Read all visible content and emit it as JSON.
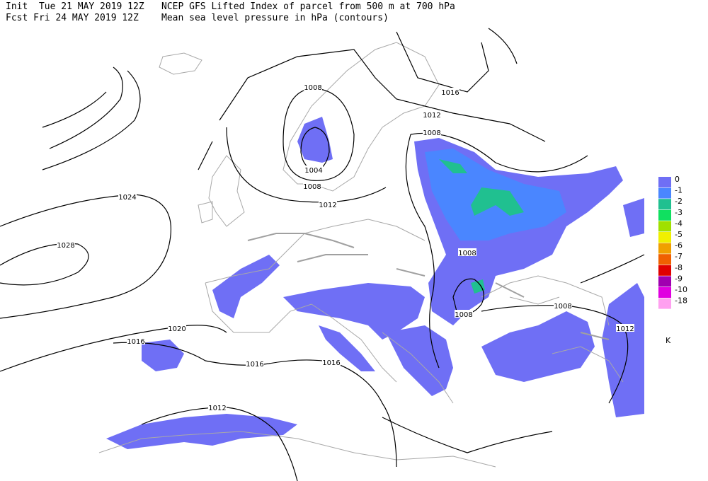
{
  "header": {
    "init": "Init  Tue 21 MAY 2019 12Z",
    "title": "NCEP GFS Lifted Index of parcel from 500 m at 700 hPa",
    "fcst": "Fcst Fri 24 MAY 2019 12Z",
    "subtitle": "Mean sea level pressure in hPa (contours)"
  },
  "contour_labels": [
    "1016",
    "1012",
    "1008",
    "1004",
    "1008",
    "1012",
    "1008",
    "1024",
    "1028",
    "1008",
    "1008",
    "1008",
    "1012",
    "1020",
    "1016",
    "1016",
    "1016",
    "1012"
  ],
  "legend": {
    "unit": "K",
    "entries": [
      {
        "label": "0",
        "color": "#6f6ff5"
      },
      {
        "label": "-1",
        "color": "#4a86ff"
      },
      {
        "label": "-2",
        "color": "#20c090"
      },
      {
        "label": "-3",
        "color": "#10e060"
      },
      {
        "label": "-4",
        "color": "#a0e000"
      },
      {
        "label": "-5",
        "color": "#f0f000"
      },
      {
        "label": "-6",
        "color": "#f0a000"
      },
      {
        "label": "-7",
        "color": "#f06000"
      },
      {
        "label": "-8",
        "color": "#e00000"
      },
      {
        "label": "-9",
        "color": "#a000b0"
      },
      {
        "label": "-10",
        "color": "#e000e0"
      },
      {
        "label": "-18",
        "color": "#ffa0f0"
      }
    ]
  }
}
